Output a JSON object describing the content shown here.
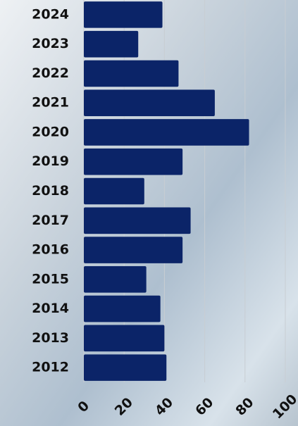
{
  "chart_data": {
    "type": "barh",
    "categories": [
      "2024",
      "2023",
      "2022",
      "2021",
      "2020",
      "2019",
      "2018",
      "2017",
      "2016",
      "2015",
      "2014",
      "2013",
      "2012"
    ],
    "values": [
      39,
      27,
      47,
      65,
      82,
      49,
      30,
      53,
      49,
      31,
      38,
      40,
      41
    ],
    "color": "#0b2468",
    "xlim": [
      0,
      100
    ],
    "xticks": [
      0,
      20,
      40,
      60,
      80,
      100
    ],
    "grid": true
  }
}
